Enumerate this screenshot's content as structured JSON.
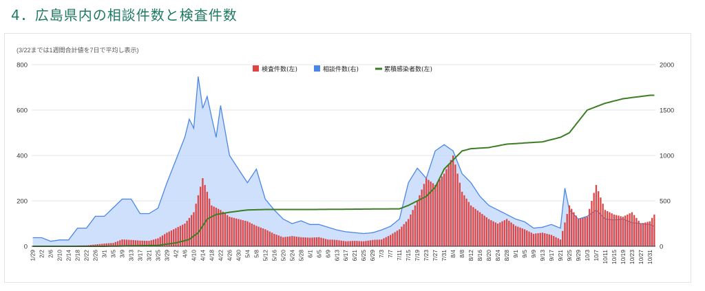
{
  "header": {
    "title": "4．広島県内の相談件数と検査件数"
  },
  "chart_note": "(3/22までは1週間合計値を7日で平均し表示)",
  "colors": {
    "tests": "#dd4444",
    "consultations": "#4a86e8",
    "consult_fill": "#c6dafc",
    "cumulative": "#3b7d23",
    "title": "#1e7a63"
  },
  "chart_data": {
    "type": "bar",
    "title": "",
    "left_axis": {
      "min": 0,
      "max": 800,
      "ticks": [
        "0",
        "200",
        "400",
        "600",
        "800"
      ]
    },
    "right_axis": {
      "min": 0,
      "max": 2000,
      "ticks": [
        "0",
        "500",
        "1000",
        "1500",
        "2000"
      ]
    },
    "legend": [
      {
        "name": "検査件数(左)",
        "type": "bar",
        "axis": "left"
      },
      {
        "name": "相談件数(右)",
        "type": "area",
        "axis": "right"
      },
      {
        "name": "累積感染者数(左)",
        "type": "line",
        "axis": "left"
      }
    ],
    "x_start": "1/29",
    "x_end": "11/2",
    "x_tick_labels": [
      "1/29",
      "2/2",
      "2/6",
      "2/10",
      "2/14",
      "2/18",
      "2/22",
      "2/26",
      "3/1",
      "3/5",
      "3/9",
      "3/13",
      "3/17",
      "3/21",
      "3/25",
      "3/29",
      "4/2",
      "4/6",
      "4/10",
      "4/14",
      "4/18",
      "4/22",
      "4/26",
      "4/30",
      "5/4",
      "5/8",
      "5/12",
      "5/16",
      "5/20",
      "5/24",
      "5/28",
      "6/1",
      "6/5",
      "6/9",
      "6/13",
      "6/17",
      "6/21",
      "6/25",
      "6/29",
      "7/3",
      "7/7",
      "7/11",
      "7/15",
      "7/19",
      "7/23",
      "7/27",
      "7/31",
      "8/4",
      "8/8",
      "8/12",
      "8/16",
      "8/20",
      "8/24",
      "8/28",
      "9/1",
      "9/5",
      "9/9",
      "9/13",
      "9/17",
      "9/21",
      "9/25",
      "9/29",
      "10/3",
      "10/7",
      "10/11",
      "10/15",
      "10/19",
      "10/23",
      "10/27",
      "10/31"
    ],
    "series": [
      {
        "name": "検査件数(左)",
        "axis": "left",
        "sampled": true,
        "points": [
          [
            "1/29",
            0
          ],
          [
            "2/22",
            4
          ],
          [
            "3/1",
            12
          ],
          [
            "3/5",
            15
          ],
          [
            "3/9",
            30
          ],
          [
            "3/13",
            28
          ],
          [
            "3/17",
            25
          ],
          [
            "3/21",
            24
          ],
          [
            "3/25",
            35
          ],
          [
            "3/29",
            60
          ],
          [
            "4/2",
            80
          ],
          [
            "4/6",
            100
          ],
          [
            "4/10",
            150
          ],
          [
            "4/14",
            300
          ],
          [
            "4/18",
            180
          ],
          [
            "4/22",
            160
          ],
          [
            "4/26",
            130
          ],
          [
            "4/30",
            120
          ],
          [
            "5/4",
            110
          ],
          [
            "5/8",
            90
          ],
          [
            "5/12",
            75
          ],
          [
            "5/16",
            55
          ],
          [
            "5/20",
            40
          ],
          [
            "5/24",
            45
          ],
          [
            "5/28",
            40
          ],
          [
            "6/1",
            38
          ],
          [
            "6/5",
            40
          ],
          [
            "6/9",
            30
          ],
          [
            "6/13",
            28
          ],
          [
            "6/17",
            22
          ],
          [
            "6/21",
            24
          ],
          [
            "6/25",
            22
          ],
          [
            "6/29",
            28
          ],
          [
            "7/3",
            30
          ],
          [
            "7/7",
            50
          ],
          [
            "7/11",
            75
          ],
          [
            "7/15",
            120
          ],
          [
            "7/19",
            200
          ],
          [
            "7/23",
            300
          ],
          [
            "7/27",
            270
          ],
          [
            "7/31",
            320
          ],
          [
            "8/4",
            400
          ],
          [
            "8/8",
            240
          ],
          [
            "8/12",
            180
          ],
          [
            "8/16",
            150
          ],
          [
            "8/20",
            120
          ],
          [
            "8/24",
            100
          ],
          [
            "8/28",
            120
          ],
          [
            "9/1",
            90
          ],
          [
            "9/5",
            75
          ],
          [
            "9/9",
            55
          ],
          [
            "9/13",
            60
          ],
          [
            "9/17",
            50
          ],
          [
            "9/21",
            30
          ],
          [
            "9/25",
            180
          ],
          [
            "9/29",
            120
          ],
          [
            "10/3",
            130
          ],
          [
            "10/7",
            270
          ],
          [
            "10/11",
            160
          ],
          [
            "10/15",
            140
          ],
          [
            "10/19",
            130
          ],
          [
            "10/23",
            150
          ],
          [
            "10/27",
            100
          ],
          [
            "10/31",
            110
          ],
          [
            "11/2",
            140
          ]
        ]
      },
      {
        "name": "相談件数(右)",
        "axis": "right",
        "sampled": true,
        "points": [
          [
            "1/29",
            95
          ],
          [
            "2/2",
            95
          ],
          [
            "2/6",
            55
          ],
          [
            "2/10",
            70
          ],
          [
            "2/14",
            70
          ],
          [
            "2/18",
            200
          ],
          [
            "2/22",
            200
          ],
          [
            "2/26",
            330
          ],
          [
            "3/1",
            330
          ],
          [
            "3/5",
            425
          ],
          [
            "3/9",
            520
          ],
          [
            "3/13",
            520
          ],
          [
            "3/17",
            360
          ],
          [
            "3/21",
            360
          ],
          [
            "3/25",
            420
          ],
          [
            "3/29",
            700
          ],
          [
            "4/2",
            950
          ],
          [
            "4/6",
            1200
          ],
          [
            "4/8",
            1400
          ],
          [
            "4/10",
            1300
          ],
          [
            "4/12",
            1870
          ],
          [
            "4/14",
            1520
          ],
          [
            "4/16",
            1650
          ],
          [
            "4/18",
            1420
          ],
          [
            "4/20",
            1200
          ],
          [
            "4/22",
            1550
          ],
          [
            "4/26",
            1000
          ],
          [
            "4/30",
            850
          ],
          [
            "5/4",
            700
          ],
          [
            "5/8",
            850
          ],
          [
            "5/12",
            520
          ],
          [
            "5/16",
            400
          ],
          [
            "5/20",
            300
          ],
          [
            "5/24",
            250
          ],
          [
            "5/28",
            280
          ],
          [
            "6/1",
            240
          ],
          [
            "6/5",
            240
          ],
          [
            "6/9",
            210
          ],
          [
            "6/13",
            180
          ],
          [
            "6/17",
            160
          ],
          [
            "6/21",
            150
          ],
          [
            "6/25",
            140
          ],
          [
            "6/29",
            150
          ],
          [
            "7/3",
            180
          ],
          [
            "7/7",
            220
          ],
          [
            "7/11",
            300
          ],
          [
            "7/15",
            700
          ],
          [
            "7/19",
            860
          ],
          [
            "7/23",
            750
          ],
          [
            "7/27",
            1050
          ],
          [
            "7/31",
            1120
          ],
          [
            "8/4",
            1050
          ],
          [
            "8/8",
            800
          ],
          [
            "8/12",
            700
          ],
          [
            "8/16",
            550
          ],
          [
            "8/20",
            450
          ],
          [
            "8/24",
            400
          ],
          [
            "8/28",
            350
          ],
          [
            "9/1",
            300
          ],
          [
            "9/5",
            270
          ],
          [
            "9/9",
            200
          ],
          [
            "9/13",
            210
          ],
          [
            "9/17",
            240
          ],
          [
            "9/21",
            200
          ],
          [
            "9/23",
            640
          ],
          [
            "9/25",
            400
          ],
          [
            "9/29",
            300
          ],
          [
            "10/3",
            330
          ],
          [
            "10/7",
            400
          ],
          [
            "10/11",
            300
          ],
          [
            "10/15",
            290
          ],
          [
            "10/19",
            300
          ],
          [
            "10/23",
            260
          ],
          [
            "10/27",
            250
          ],
          [
            "10/31",
            240
          ],
          [
            "11/2",
            220
          ]
        ]
      },
      {
        "name": "累積感染者数(左)",
        "axis": "left",
        "sampled": true,
        "points": [
          [
            "1/29",
            0
          ],
          [
            "3/1",
            0
          ],
          [
            "3/25",
            4
          ],
          [
            "4/2",
            15
          ],
          [
            "4/8",
            30
          ],
          [
            "4/12",
            60
          ],
          [
            "4/16",
            120
          ],
          [
            "4/20",
            140
          ],
          [
            "4/26",
            150
          ],
          [
            "5/4",
            160
          ],
          [
            "5/12",
            162
          ],
          [
            "6/1",
            162
          ],
          [
            "7/11",
            165
          ],
          [
            "7/15",
            180
          ],
          [
            "7/23",
            220
          ],
          [
            "7/27",
            260
          ],
          [
            "7/31",
            340
          ],
          [
            "8/4",
            380
          ],
          [
            "8/8",
            420
          ],
          [
            "8/12",
            430
          ],
          [
            "8/20",
            435
          ],
          [
            "8/28",
            450
          ],
          [
            "9/5",
            455
          ],
          [
            "9/13",
            460
          ],
          [
            "9/21",
            480
          ],
          [
            "9/25",
            500
          ],
          [
            "9/29",
            550
          ],
          [
            "10/3",
            600
          ],
          [
            "10/7",
            615
          ],
          [
            "10/11",
            630
          ],
          [
            "10/15",
            640
          ],
          [
            "10/19",
            650
          ],
          [
            "10/23",
            655
          ],
          [
            "10/27",
            660
          ],
          [
            "10/31",
            665
          ],
          [
            "11/2",
            665
          ]
        ]
      }
    ]
  }
}
